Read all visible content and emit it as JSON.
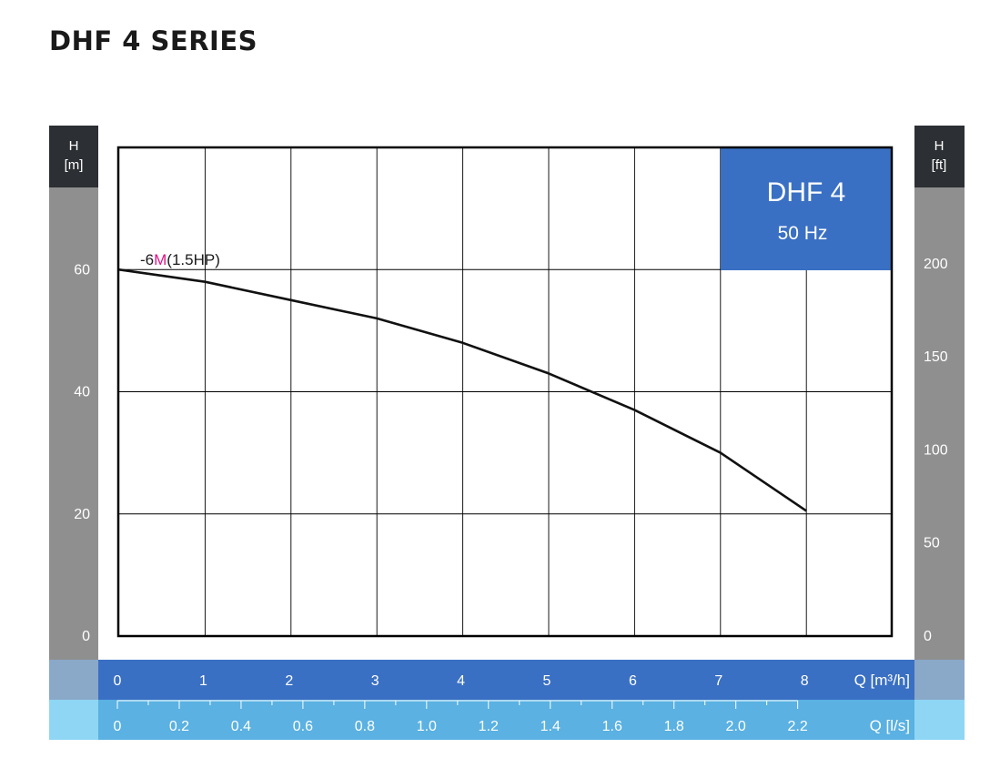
{
  "page_title": "DHF 4 SERIES",
  "colors": {
    "left_axis_band": "#8f8f8f",
    "axis_header": "#2c2f33",
    "badge": "#3a70c3",
    "q_m3h_band": "#3a70c3",
    "q_ls_band": "#5ab1e2",
    "q_corner_dark": "#8aa8c8",
    "q_corner_light": "#8ed6f4",
    "curve_label_accent": "#e0158a",
    "grid": "#000000"
  },
  "chart_data": {
    "type": "line",
    "title": "DHF 4",
    "subtitle": "50 Hz",
    "left_axis": {
      "label": "H",
      "unit": "[m]",
      "range": [
        0,
        60
      ],
      "ticks": [
        "0",
        "20",
        "40",
        "60"
      ]
    },
    "right_axis": {
      "label": "H",
      "unit": "[ft]",
      "ticks": [
        "0",
        "50",
        "100",
        "150",
        "200"
      ]
    },
    "x_axis_primary": {
      "label": "Q [m³/h]",
      "range": [
        0,
        9
      ],
      "ticks": [
        "0",
        "1",
        "2",
        "3",
        "4",
        "5",
        "6",
        "7",
        "8"
      ]
    },
    "x_axis_secondary": {
      "label": "Q [l/s]",
      "ticks": [
        "0",
        "0.2",
        "0.4",
        "0.6",
        "0.8",
        "1.0",
        "1.2",
        "1.4",
        "1.6",
        "1.8",
        "2.0",
        "2.2"
      ]
    },
    "grid": true,
    "series": [
      {
        "name": "-6M(1.5HP)",
        "label_parts": [
          "-6",
          "M",
          "(1.5HP)"
        ],
        "x": [
          0,
          1,
          2,
          3,
          4,
          5,
          6,
          7,
          8
        ],
        "y": [
          60,
          58,
          55,
          52,
          48,
          43,
          37,
          30,
          20.5
        ]
      }
    ]
  }
}
